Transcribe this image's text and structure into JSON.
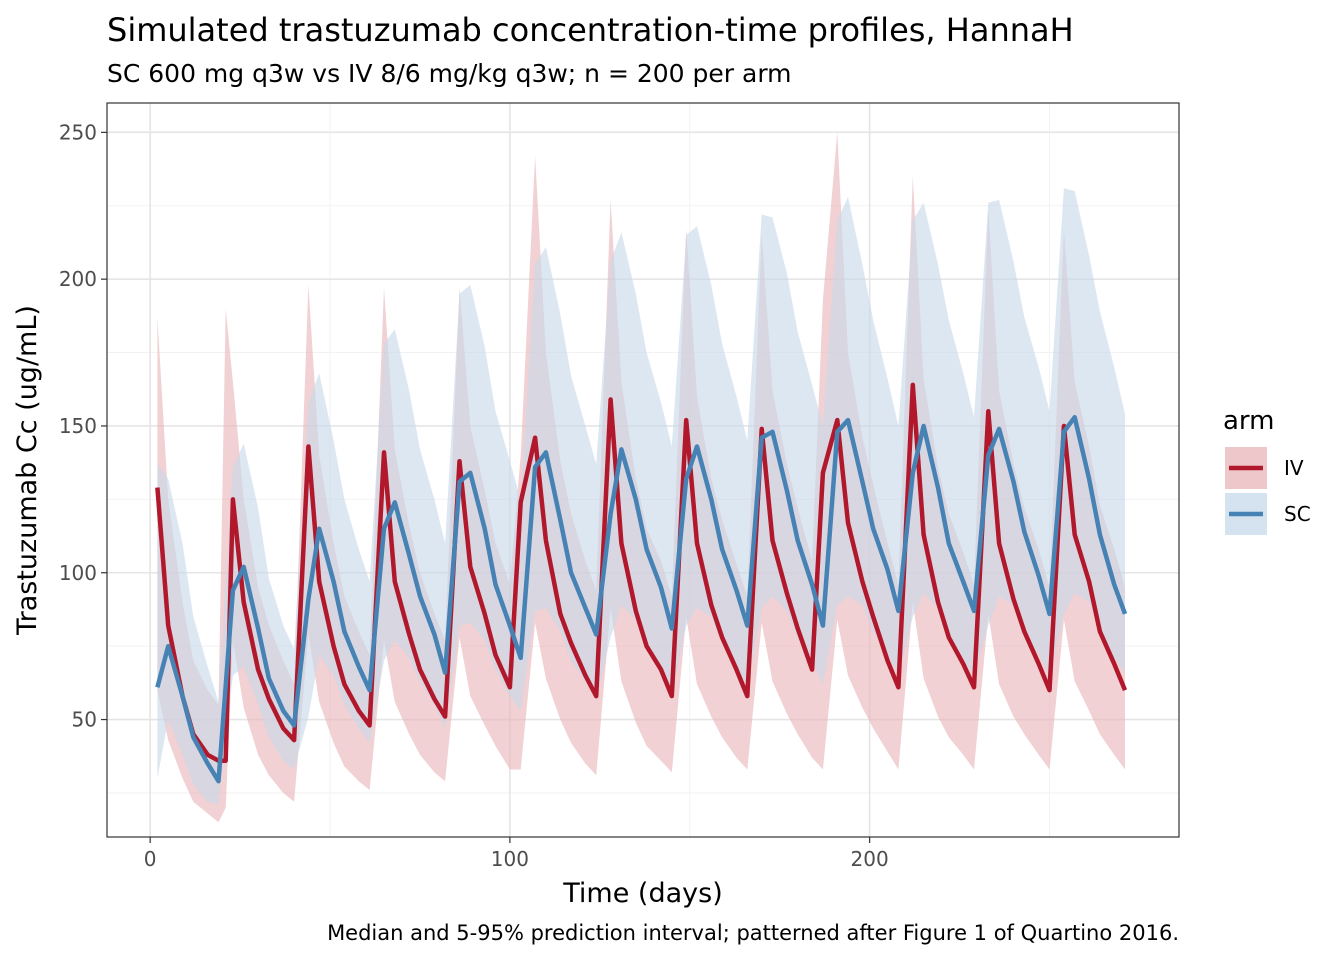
{
  "chart_data": {
    "type": "line",
    "title": "Simulated trastuzumab concentration-time profiles, HannaH",
    "subtitle": "SC 600 mg q3w vs IV 8/6 mg/kg q3w; n = 200 per arm",
    "caption": "Median and 5-95% prediction interval; patterned after Figure 1 of Quartino 2016.",
    "xlabel": "Time (days)",
    "ylabel": "Trastuzumab Cc (ug/mL)",
    "xlim": [
      -12,
      286
    ],
    "ylim": [
      10,
      260
    ],
    "x_ticks": [
      0,
      100,
      200
    ],
    "y_ticks": [
      50,
      100,
      150,
      200,
      250
    ],
    "grid": true,
    "legend": {
      "title": "arm",
      "position": "right"
    },
    "series": [
      {
        "name": "IV",
        "color": "#b2182b",
        "band_color": "#e8b4b8",
        "x": [
          2,
          5,
          9,
          12,
          16,
          19,
          21,
          23,
          26,
          30,
          33,
          37,
          40,
          44,
          47,
          51,
          54,
          58,
          61,
          65,
          68,
          72,
          75,
          79,
          82,
          86,
          89,
          93,
          96,
          100,
          103,
          107,
          110,
          114,
          117,
          121,
          124,
          128,
          131,
          135,
          138,
          142,
          145,
          149,
          152,
          156,
          159,
          163,
          166,
          170,
          173,
          177,
          180,
          184,
          187,
          191,
          194,
          198,
          201,
          205,
          208,
          212,
          215,
          219,
          222,
          226,
          229,
          233,
          236,
          240,
          243,
          247,
          250,
          254,
          257,
          261,
          264,
          268,
          271
        ],
        "median": [
          129,
          82,
          58,
          45,
          38,
          36,
          36,
          125,
          90,
          67,
          57,
          47,
          43,
          143,
          97,
          75,
          62,
          53,
          48,
          141,
          97,
          79,
          67,
          57,
          51,
          138,
          102,
          86,
          72,
          61,
          124,
          146,
          111,
          86,
          76,
          65,
          58,
          159,
          110,
          87,
          75,
          67,
          58,
          152,
          110,
          89,
          78,
          67,
          58,
          149,
          111,
          93,
          81,
          67,
          134,
          152,
          117,
          97,
          85,
          70,
          61,
          164,
          113,
          90,
          78,
          69,
          61,
          155,
          110,
          91,
          80,
          69,
          60,
          150,
          113,
          97,
          80,
          69,
          60
        ],
        "lo": [
          60,
          43,
          30,
          22,
          18,
          15,
          20,
          77,
          54,
          38,
          31,
          25,
          22,
          79,
          56,
          42,
          34,
          29,
          26,
          77,
          56,
          45,
          38,
          32,
          29,
          78,
          58,
          48,
          41,
          33,
          33,
          83,
          64,
          50,
          42,
          35,
          31,
          88,
          63,
          49,
          41,
          36,
          32,
          85,
          62,
          51,
          44,
          37,
          33,
          83,
          63,
          52,
          45,
          37,
          33,
          84,
          65,
          54,
          47,
          39,
          33,
          90,
          64,
          51,
          44,
          38,
          33,
          86,
          62,
          51,
          45,
          38,
          33,
          84,
          63,
          53,
          45,
          38,
          33
        ],
        "hi": [
          187,
          125,
          90,
          70,
          60,
          55,
          190,
          165,
          125,
          95,
          82,
          70,
          62,
          198,
          140,
          110,
          92,
          80,
          72,
          197,
          142,
          116,
          100,
          86,
          77,
          197,
          150,
          128,
          110,
          96,
          140,
          242,
          175,
          138,
          120,
          104,
          94,
          227,
          165,
          132,
          115,
          104,
          92,
          217,
          160,
          132,
          118,
          103,
          92,
          215,
          162,
          137,
          122,
          104,
          193,
          250,
          175,
          146,
          130,
          110,
          96,
          235,
          166,
          136,
          120,
          107,
          96,
          224,
          162,
          137,
          122,
          108,
          95,
          217,
          165,
          143,
          123,
          108,
          95
        ]
      },
      {
        "name": "SC",
        "color": "#4682b4",
        "band_color": "#c6d9ea",
        "x": [
          2,
          5,
          9,
          12,
          16,
          19,
          23,
          26,
          30,
          33,
          37,
          40,
          44,
          47,
          51,
          54,
          58,
          61,
          65,
          68,
          72,
          75,
          79,
          82,
          86,
          89,
          93,
          96,
          100,
          103,
          107,
          110,
          114,
          117,
          121,
          124,
          128,
          131,
          135,
          138,
          142,
          145,
          149,
          152,
          156,
          159,
          163,
          166,
          170,
          173,
          177,
          180,
          184,
          187,
          191,
          194,
          198,
          201,
          205,
          208,
          212,
          215,
          219,
          222,
          226,
          229,
          233,
          236,
          240,
          243,
          247,
          250,
          254,
          257,
          261,
          264,
          268,
          271
        ],
        "median": [
          61,
          75,
          58,
          44,
          35,
          29,
          94,
          102,
          81,
          64,
          53,
          48,
          91,
          115,
          97,
          80,
          68,
          60,
          115,
          124,
          106,
          92,
          79,
          66,
          131,
          134,
          115,
          96,
          82,
          71,
          136,
          141,
          118,
          100,
          88,
          79,
          120,
          142,
          125,
          108,
          95,
          81,
          132,
          143,
          125,
          108,
          94,
          82,
          146,
          148,
          128,
          111,
          96,
          82,
          148,
          152,
          131,
          115,
          101,
          87,
          134,
          150,
          129,
          110,
          97,
          87,
          140,
          149,
          131,
          114,
          99,
          86,
          148,
          153,
          132,
          113,
          96,
          86
        ],
        "lo": [
          30,
          50,
          38,
          28,
          22,
          21,
          65,
          68,
          55,
          44,
          36,
          33,
          51,
          72,
          65,
          55,
          47,
          42,
          70,
          77,
          71,
          63,
          55,
          47,
          82,
          83,
          77,
          67,
          58,
          53,
          87,
          88,
          80,
          70,
          63,
          57,
          78,
          89,
          84,
          75,
          67,
          59,
          82,
          88,
          85,
          76,
          68,
          61,
          88,
          92,
          87,
          78,
          70,
          62,
          89,
          92,
          89,
          80,
          72,
          65,
          85,
          93,
          88,
          78,
          70,
          65,
          82,
          92,
          89,
          80,
          72,
          65,
          86,
          93,
          90,
          80,
          71,
          66
        ],
        "hi": [
          137,
          132,
          110,
          85,
          68,
          56,
          136,
          144,
          122,
          98,
          82,
          74,
          158,
          168,
          145,
          125,
          108,
          97,
          178,
          183,
          162,
          142,
          125,
          110,
          195,
          198,
          177,
          155,
          138,
          125,
          205,
          211,
          188,
          167,
          150,
          137,
          206,
          216,
          195,
          175,
          158,
          143,
          215,
          218,
          198,
          178,
          160,
          145,
          222,
          221,
          202,
          182,
          164,
          150,
          220,
          228,
          205,
          186,
          166,
          150,
          220,
          226,
          205,
          186,
          168,
          153,
          226,
          227,
          206,
          187,
          170,
          155,
          231,
          230,
          208,
          189,
          170,
          154
        ]
      }
    ]
  }
}
